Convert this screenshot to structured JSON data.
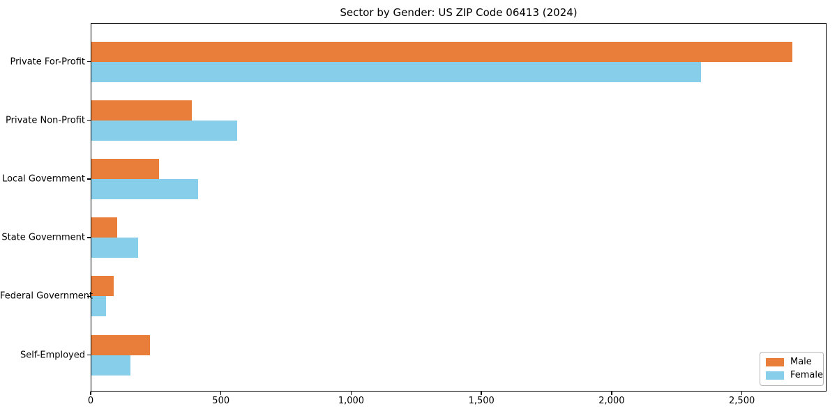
{
  "chart_data": {
    "type": "bar",
    "orientation": "horizontal",
    "title": "Sector by Gender: US ZIP Code 06413 (2024)",
    "categories": [
      "Private For-Profit",
      "Private Non-Profit",
      "Local Government",
      "State Government",
      "Federal Government",
      "Self-Employed"
    ],
    "series": [
      {
        "name": "Male",
        "color": "#E87E3A",
        "values": [
          2690,
          385,
          260,
          100,
          85,
          225
        ]
      },
      {
        "name": "Female",
        "color": "#87CEEB",
        "values": [
          2340,
          560,
          410,
          180,
          55,
          150
        ]
      }
    ],
    "xlabel": "",
    "ylabel": "",
    "xlim": [
      0,
      2825
    ],
    "xticks": {
      "values": [
        0,
        500,
        1000,
        1500,
        2000,
        2500
      ],
      "labels": [
        "0",
        "500",
        "1,000",
        "1,500",
        "2,000",
        "2,500"
      ]
    },
    "grid": false,
    "legend": {
      "position": "lower right",
      "entries": [
        "Male",
        "Female"
      ]
    }
  },
  "colors": {
    "male": "#E87E3A",
    "female": "#87CEEB",
    "axis": "#000000",
    "legend_border": "#b6b6b6",
    "background": "#ffffff"
  }
}
